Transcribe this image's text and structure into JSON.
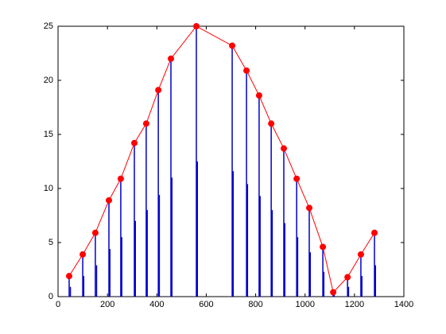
{
  "chart_data": {
    "type": "line-stem",
    "xlim": [
      0,
      1400
    ],
    "xticks": [
      0,
      200,
      400,
      600,
      800,
      1000,
      1200,
      1400
    ],
    "ylim": [
      0,
      25
    ],
    "yticks": [
      0,
      5,
      10,
      15,
      20,
      25
    ],
    "series": [
      {
        "kind": "line",
        "color": "#ff0000",
        "x": [
          45,
          100,
          151,
          206,
          254,
          309,
          357,
          406,
          457,
          560,
          705,
          763,
          814,
          863,
          914,
          966,
          1017,
          1072,
          1114,
          1172,
          1226,
          1281
        ],
        "values": [
          1.9,
          3.9,
          5.9,
          8.9,
          10.9,
          14.2,
          16.0,
          19.1,
          22.0,
          25.0,
          23.2,
          20.9,
          18.6,
          16.0,
          13.7,
          10.9,
          8.2,
          4.6,
          0.4,
          1.8,
          3.9,
          5.9
        ]
      },
      {
        "kind": "stem",
        "color": "#0000cc",
        "x": [
          45,
          100,
          151,
          206,
          254,
          309,
          357,
          406,
          457,
          560,
          705,
          763,
          814,
          863,
          914,
          966,
          1017,
          1072,
          1114,
          1172,
          1226,
          1281
        ],
        "values": [
          1.9,
          3.9,
          5.9,
          8.9,
          10.9,
          14.2,
          16.0,
          19.1,
          22.0,
          25.0,
          23.2,
          20.9,
          18.6,
          16.0,
          13.7,
          10.9,
          8.2,
          4.6,
          0.4,
          1.8,
          3.9,
          5.9
        ]
      },
      {
        "kind": "stem",
        "color": "#0000cc",
        "x": [
          50,
          104,
          156,
          210,
          258,
          313,
          361,
          410,
          461,
          564,
          709,
          767,
          818,
          867,
          918,
          970,
          1021,
          1076,
          1118,
          1176,
          1230,
          1285
        ],
        "values": [
          0.9,
          1.9,
          2.9,
          4.4,
          5.5,
          7.0,
          8.0,
          9.4,
          11.0,
          12.5,
          11.6,
          10.4,
          9.3,
          8.0,
          6.8,
          5.5,
          4.1,
          2.3,
          0.2,
          0.9,
          1.9,
          2.9
        ]
      }
    ]
  }
}
